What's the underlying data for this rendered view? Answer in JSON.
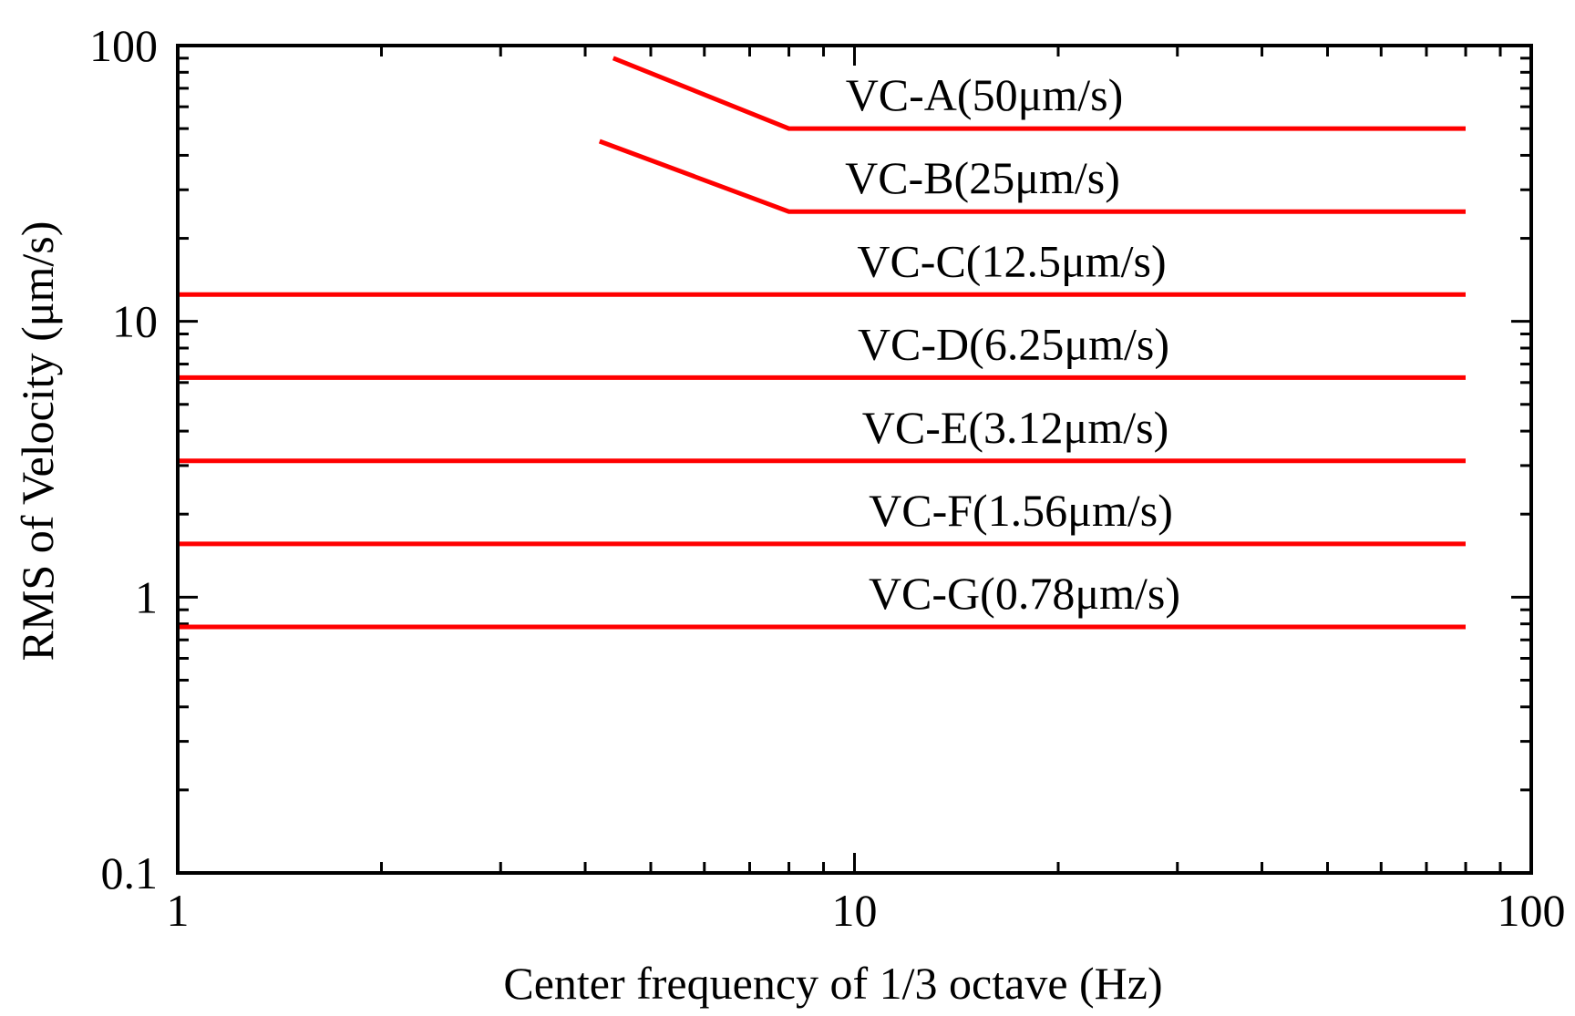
{
  "chart_data": {
    "type": "line",
    "xlabel": "Center frequency of 1/3 octave (Hz)",
    "ylabel": "RMS of Velocity (μm/s)",
    "xscale": "log",
    "yscale": "log",
    "xlim": [
      1,
      100
    ],
    "ylim": [
      0.1,
      100
    ],
    "x_ticks": [
      {
        "value": 1,
        "label": "1"
      },
      {
        "value": 10,
        "label": "10"
      },
      {
        "value": 100,
        "label": "100"
      }
    ],
    "y_ticks": [
      {
        "value": 0.1,
        "label": "0.1"
      },
      {
        "value": 1,
        "label": "1"
      },
      {
        "value": 10,
        "label": "10"
      },
      {
        "value": 100,
        "label": "100"
      }
    ],
    "grid": false,
    "line_color": "#ff0000",
    "series": [
      {
        "name": "VC-A(50μm/s)",
        "x": [
          4.4,
          8,
          80
        ],
        "y": [
          90,
          50,
          50
        ]
      },
      {
        "name": "VC-B(25μm/s)",
        "x": [
          4.2,
          8,
          80
        ],
        "y": [
          45,
          25,
          25
        ]
      },
      {
        "name": "VC-C(12.5μm/s)",
        "x": [
          1,
          80
        ],
        "y": [
          12.5,
          12.5
        ]
      },
      {
        "name": "VC-D(6.25μm/s)",
        "x": [
          1,
          80
        ],
        "y": [
          6.25,
          6.25
        ]
      },
      {
        "name": "VC-E(3.12μm/s)",
        "x": [
          1,
          80
        ],
        "y": [
          3.12,
          3.12
        ]
      },
      {
        "name": "VC-F(1.56μm/s)",
        "x": [
          1,
          80
        ],
        "y": [
          1.56,
          1.56
        ]
      },
      {
        "name": "VC-G(0.78μm/s)",
        "x": [
          1,
          80
        ],
        "y": [
          0.78,
          0.78
        ]
      }
    ]
  }
}
